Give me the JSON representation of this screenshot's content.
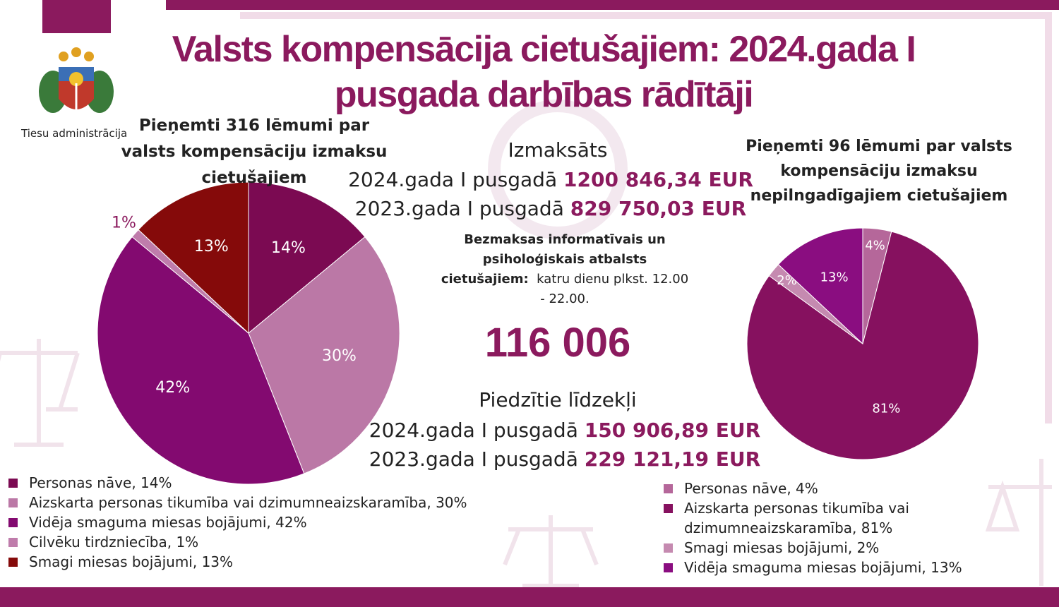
{
  "header": {
    "title": "Valsts kompensācija cietušajiem: 2024.gada I pusgada darbības rādītāji",
    "organization": "Tiesu administrācija"
  },
  "center": {
    "paid_heading": "Izmaksāts",
    "paid_rows": [
      {
        "label": "2024.gada I pusgadā",
        "amount": "1200 846,34 EUR"
      },
      {
        "label": "2023.gada  I pusgadā",
        "amount": "829 750,03 EUR"
      }
    ],
    "support_bold": "Bezmaksas informatīvais un psiholoģiskais atbalsts cietušajiem:",
    "support_text": "katru dienu plkst. 12.00 - 22.00.",
    "phone": "116 006",
    "recovered_heading": "Piedzītie līdzekļi",
    "recovered_rows": [
      {
        "label": "2024.gada I pusgadā",
        "amount": "150 906,89 EUR"
      },
      {
        "label": "2023.gada I pusgadā",
        "amount": "229 121,19 EUR"
      }
    ]
  },
  "chart_data": [
    {
      "type": "pie",
      "title": "Pieņemti 316 lēmumi par valsts kompensāciju izmaksu cietušajiem",
      "categories": [
        "Personas nāve, 14%",
        "Aizskarta personas tikumība vai dzimumneaizskaramība, 30%",
        "Vidēja smaguma miesas bojājumi, 42%",
        "Cilvēku tirdzniecība, 1%",
        "Smagi miesas bojājumi, 13%"
      ],
      "values": [
        14,
        30,
        42,
        1,
        13
      ],
      "value_labels": [
        "14%",
        "30%",
        "42%",
        "1%",
        "13%"
      ],
      "colors": [
        "#7b0a52",
        "#bb78a6",
        "#830a70",
        "#bf7cab",
        "#850a0a"
      ]
    },
    {
      "type": "pie",
      "title": "Pieņemti 96 lēmumi par valsts kompensāciju izmaksu nepilngadīgajiem cietušajiem",
      "categories": [
        "Personas nāve, 4%",
        "Aizskarta personas tikumība vai dzimumneaizskaramība, 81%",
        "Smagi miesas bojājumi, 2%",
        "Vidēja smaguma miesas bojājumi, 13%"
      ],
      "values": [
        4,
        81,
        2,
        13
      ],
      "value_labels": [
        "4%",
        "81%",
        "2%",
        "13%"
      ],
      "colors": [
        "#b5679a",
        "#86115f",
        "#c58ab0",
        "#8a0d80"
      ]
    }
  ]
}
